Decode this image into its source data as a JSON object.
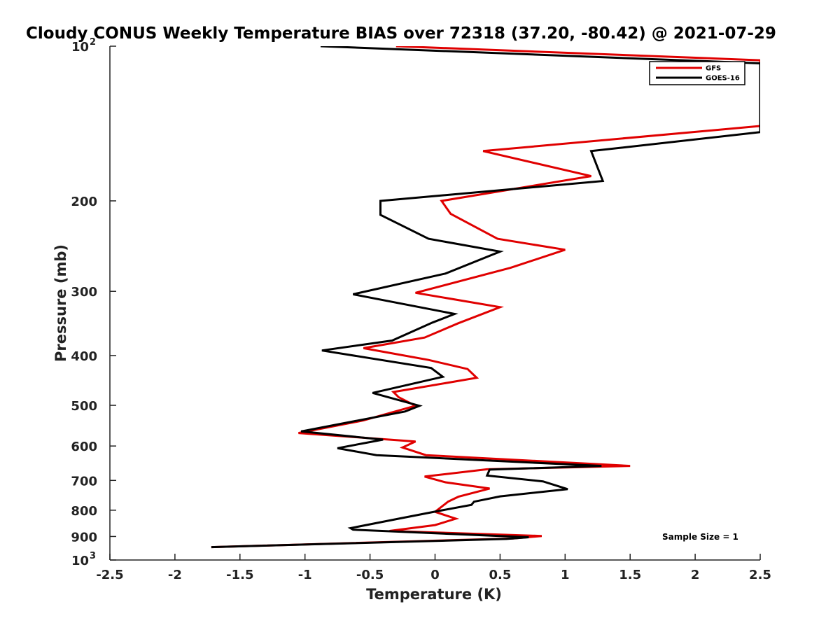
{
  "chart_data": {
    "type": "line",
    "title": "Cloudy CONUS Weekly Temperature BIAS over 72318 (37.20, -80.42) @ 2021-07-29",
    "xlabel": "Temperature (K)",
    "ylabel": "Pressure (mb)",
    "xlim": [
      -2.5,
      2.5
    ],
    "ylim": [
      100,
      1000
    ],
    "y_scale": "log",
    "y_reversed": true,
    "x_ticks": [
      "-2.5",
      "-2",
      "-1.5",
      "-1",
      "-0.5",
      "0",
      "0.5",
      "1",
      "1.5",
      "2",
      "2.5"
    ],
    "y_ticks": [
      {
        "value": 100,
        "base": "10",
        "exp": "2"
      },
      {
        "value": 200,
        "label": "200"
      },
      {
        "value": 300,
        "label": "300"
      },
      {
        "value": 400,
        "label": "400"
      },
      {
        "value": 500,
        "label": "500"
      },
      {
        "value": 600,
        "label": "600"
      },
      {
        "value": 700,
        "label": "700"
      },
      {
        "value": 800,
        "label": "800"
      },
      {
        "value": 900,
        "label": "900"
      },
      {
        "value": 1000,
        "base": "10",
        "exp": "3"
      }
    ],
    "legend": {
      "position": "top-right"
    },
    "annotation": "Sample Size = 1",
    "series": [
      {
        "name": "GFS",
        "color": "#e00000",
        "points": [
          [
            -0.3,
            100
          ],
          [
            2.5,
            106.5
          ],
          [
            2.5,
            143
          ],
          [
            0.37,
            160
          ],
          [
            1.2,
            179
          ],
          [
            0.05,
            200
          ],
          [
            0.12,
            212
          ],
          [
            0.48,
            237
          ],
          [
            1.0,
            249
          ],
          [
            0.58,
            270
          ],
          [
            -0.15,
            302
          ],
          [
            0.5,
            322
          ],
          [
            0.18,
            346
          ],
          [
            -0.08,
            369
          ],
          [
            -0.55,
            387
          ],
          [
            -0.05,
            408
          ],
          [
            0.25,
            425
          ],
          [
            0.32,
            442
          ],
          [
            -0.32,
            471
          ],
          [
            -0.28,
            482
          ],
          [
            -0.15,
            501
          ],
          [
            -0.55,
            535
          ],
          [
            -1.05,
            566
          ],
          [
            -0.15,
            588
          ],
          [
            -0.25,
            604
          ],
          [
            -0.07,
            625
          ],
          [
            1.5,
            656
          ],
          [
            0.4,
            666
          ],
          [
            -0.08,
            688
          ],
          [
            0.08,
            706
          ],
          [
            0.42,
            726
          ],
          [
            0.18,
            753
          ],
          [
            0.1,
            770
          ],
          [
            0.0,
            806
          ],
          [
            0.16,
            831
          ],
          [
            0.0,
            855
          ],
          [
            -0.35,
            878
          ],
          [
            0.82,
            898
          ],
          [
            0.6,
            908
          ],
          [
            -1.72,
            944
          ]
        ]
      },
      {
        "name": "GOES-16",
        "color": "#000000",
        "points": [
          [
            -0.88,
            100
          ],
          [
            2.5,
            108
          ],
          [
            2.5,
            147
          ],
          [
            1.2,
            160
          ],
          [
            1.29,
            183
          ],
          [
            -0.42,
            200
          ],
          [
            -0.42,
            213
          ],
          [
            -0.05,
            237
          ],
          [
            0.5,
            251
          ],
          [
            0.08,
            277
          ],
          [
            -0.63,
            304
          ],
          [
            0.15,
            332
          ],
          [
            -0.02,
            345
          ],
          [
            -0.33,
            374
          ],
          [
            -0.87,
            391
          ],
          [
            -0.03,
            423
          ],
          [
            0.06,
            440
          ],
          [
            -0.48,
            473
          ],
          [
            -0.12,
            501
          ],
          [
            -0.23,
            514
          ],
          [
            -1.03,
            562
          ],
          [
            -0.4,
            583
          ],
          [
            -0.75,
            606
          ],
          [
            -0.45,
            625
          ],
          [
            1.28,
            656
          ],
          [
            0.42,
            667
          ],
          [
            0.4,
            685
          ],
          [
            0.83,
            703
          ],
          [
            1.02,
            728
          ],
          [
            0.5,
            752
          ],
          [
            0.3,
            770
          ],
          [
            0.28,
            781
          ],
          [
            0.0,
            805
          ],
          [
            -0.27,
            830
          ],
          [
            -0.65,
            867
          ],
          [
            -0.63,
            873
          ],
          [
            0.72,
            903
          ],
          [
            0.55,
            910
          ],
          [
            -1.72,
            944
          ]
        ]
      }
    ]
  }
}
